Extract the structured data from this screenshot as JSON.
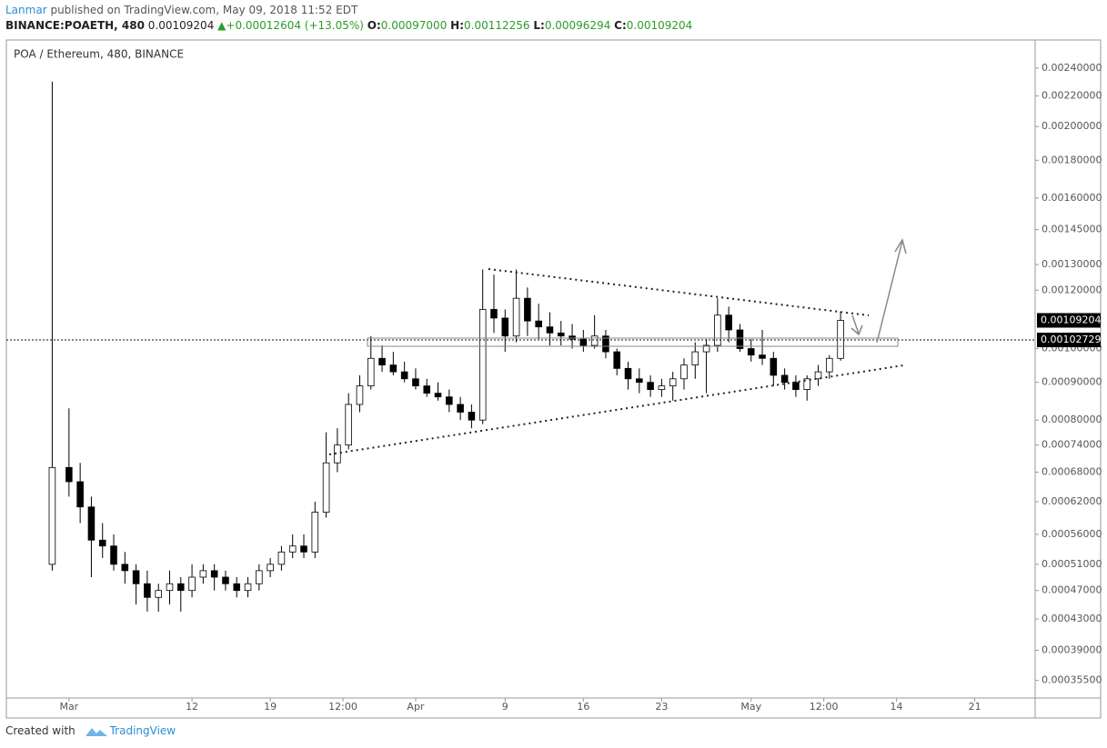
{
  "header": {
    "author": "Lanmar",
    "published": "published on TradingView.com, May 09, 2018 11:52 EDT",
    "symbol": "BINANCE:POAETH, 480",
    "price": "0.00109204",
    "change": "+0.00012604 (+13.05%)",
    "o_label": "O:",
    "o": "0.00097000",
    "h_label": "H:",
    "h": "0.00112256",
    "l_label": "L:",
    "l": "0.00096294",
    "c_label": "C:",
    "c": "0.00109204"
  },
  "footer": {
    "created": "Created with",
    "brand": "TradingView"
  },
  "chart_data": {
    "type": "candlestick",
    "title": "POA / Ethereum, 480, BINANCE",
    "log_scale": true,
    "up_color": "#ffffff",
    "down_color": "#000000",
    "outline_color": "#000000",
    "x": [
      -1.5,
      0,
      1,
      2,
      3,
      4,
      5,
      6,
      7,
      8,
      9,
      10,
      11,
      12,
      13,
      14,
      15,
      16,
      17,
      18,
      19,
      20,
      21,
      22,
      23,
      24,
      25,
      26,
      27,
      28,
      29,
      30,
      31,
      32,
      33,
      34,
      35,
      36,
      37,
      38,
      39,
      40,
      41,
      42,
      43,
      44,
      45,
      46,
      47,
      48,
      49,
      50,
      51,
      52,
      53,
      54,
      55,
      56,
      57,
      58,
      59,
      60,
      61,
      62,
      63,
      64,
      65,
      66,
      67,
      68,
      69
    ],
    "open": [
      0.00051,
      0.00069,
      0.00066,
      0.00061,
      0.00055,
      0.00054,
      0.00051,
      0.0005,
      0.00048,
      0.00046,
      0.00047,
      0.00048,
      0.00047,
      0.00049,
      0.0005,
      0.00049,
      0.00048,
      0.00047,
      0.00048,
      0.0005,
      0.00051,
      0.00053,
      0.00054,
      0.00053,
      0.0006,
      0.0007,
      0.00074,
      0.00084,
      0.00089,
      0.00097,
      0.00095,
      0.00093,
      0.00091,
      0.00089,
      0.00087,
      0.00086,
      0.00084,
      0.00082,
      0.0008,
      0.00113,
      0.0011,
      0.00104,
      0.00117,
      0.00109,
      0.00107,
      0.00105,
      0.00104,
      0.00103,
      0.00101,
      0.00104,
      0.00099,
      0.00094,
      0.00091,
      0.0009,
      0.00088,
      0.00089,
      0.00091,
      0.00095,
      0.00099,
      0.00101,
      0.00111,
      0.00106,
      0.001,
      0.00098,
      0.00097,
      0.00092,
      0.0009,
      0.00088,
      0.00091,
      0.00093,
      0.00097
    ],
    "high": [
      0.0023,
      0.00083,
      0.0007,
      0.00063,
      0.00058,
      0.00056,
      0.00053,
      0.00051,
      0.0005,
      0.00048,
      0.0005,
      0.00049,
      0.00051,
      0.00051,
      0.00051,
      0.0005,
      0.00049,
      0.00049,
      0.00051,
      0.00052,
      0.00054,
      0.00056,
      0.00056,
      0.00062,
      0.00077,
      0.00078,
      0.00087,
      0.00092,
      0.00104,
      0.00101,
      0.00099,
      0.00096,
      0.00094,
      0.00091,
      0.0009,
      0.00088,
      0.00086,
      0.00084,
      0.00128,
      0.00126,
      0.00113,
      0.00128,
      0.00121,
      0.00115,
      0.00112,
      0.00109,
      0.00108,
      0.00106,
      0.00111,
      0.00106,
      0.001,
      0.00096,
      0.00094,
      0.00092,
      0.00091,
      0.00093,
      0.00097,
      0.00102,
      0.00103,
      0.00117,
      0.00114,
      0.00108,
      0.00103,
      0.00106,
      0.00099,
      0.00094,
      0.00092,
      0.00092,
      0.00095,
      0.00098,
      0.00112256
    ],
    "low": [
      0.0005,
      0.00063,
      0.00058,
      0.00049,
      0.00052,
      0.0005,
      0.00048,
      0.00045,
      0.00044,
      0.00044,
      0.00045,
      0.00044,
      0.00046,
      0.00048,
      0.00047,
      0.00047,
      0.00046,
      0.00046,
      0.00047,
      0.00049,
      0.0005,
      0.00052,
      0.00052,
      0.00052,
      0.00059,
      0.00068,
      0.00073,
      0.00082,
      0.00088,
      0.00093,
      0.00092,
      0.0009,
      0.00088,
      0.00086,
      0.00085,
      0.00082,
      0.0008,
      0.00078,
      0.00079,
      0.00105,
      0.00099,
      0.00102,
      0.00104,
      0.00103,
      0.00101,
      0.00101,
      0.001,
      0.00099,
      0.001,
      0.00097,
      0.00092,
      0.00088,
      0.00087,
      0.00086,
      0.00086,
      0.00085,
      0.00088,
      0.00091,
      0.00087,
      0.00099,
      0.00102,
      0.00099,
      0.00096,
      0.00095,
      0.00089,
      0.00088,
      0.00086,
      0.00085,
      0.00089,
      0.00091,
      0.00096294
    ],
    "close": [
      0.00069,
      0.00066,
      0.00061,
      0.00055,
      0.00054,
      0.00051,
      0.0005,
      0.00048,
      0.00046,
      0.00047,
      0.00048,
      0.00047,
      0.00049,
      0.0005,
      0.00049,
      0.00048,
      0.00047,
      0.00048,
      0.0005,
      0.00051,
      0.00053,
      0.00054,
      0.00053,
      0.0006,
      0.0007,
      0.00074,
      0.00084,
      0.00089,
      0.00097,
      0.00095,
      0.00093,
      0.00091,
      0.00089,
      0.00087,
      0.00086,
      0.00084,
      0.00082,
      0.0008,
      0.00113,
      0.0011,
      0.00104,
      0.00117,
      0.00109,
      0.00107,
      0.00105,
      0.00104,
      0.00103,
      0.00101,
      0.00104,
      0.00099,
      0.00094,
      0.00091,
      0.0009,
      0.00088,
      0.00089,
      0.00091,
      0.00095,
      0.00099,
      0.00101,
      0.00111,
      0.00106,
      0.001,
      0.00098,
      0.00097,
      0.00092,
      0.0009,
      0.00088,
      0.00091,
      0.00093,
      0.00097,
      0.00109204
    ],
    "xlim": [
      -5.6,
      86.4
    ],
    "xticks": [
      {
        "value": 0,
        "label": "Mar"
      },
      {
        "value": 11,
        "label": "12"
      },
      {
        "value": 18,
        "label": "19"
      },
      {
        "value": 24.5,
        "label": "12:00"
      },
      {
        "value": 31,
        "label": "Apr"
      },
      {
        "value": 39,
        "label": "9"
      },
      {
        "value": 46,
        "label": "16"
      },
      {
        "value": 53,
        "label": "23"
      },
      {
        "value": 61,
        "label": "May"
      },
      {
        "value": 67.5,
        "label": "12:00"
      },
      {
        "value": 74,
        "label": "14"
      },
      {
        "value": 81,
        "label": "21"
      }
    ],
    "ylim": [
      0.000336,
      0.00262
    ],
    "yticks": [
      {
        "value": 0.0024,
        "label": "0.00240000"
      },
      {
        "value": 0.0022,
        "label": "0.00220000"
      },
      {
        "value": 0.002,
        "label": "0.00200000"
      },
      {
        "value": 0.0018,
        "label": "0.00180000"
      },
      {
        "value": 0.0016,
        "label": "0.00160000"
      },
      {
        "value": 0.00145,
        "label": "0.00145000"
      },
      {
        "value": 0.0013,
        "label": "0.00130000"
      },
      {
        "value": 0.0012,
        "label": "0.00120000"
      },
      {
        "value": 0.001,
        "label": "0.00100000"
      },
      {
        "value": 0.0009,
        "label": "0.00090000"
      },
      {
        "value": 0.0008,
        "label": "0.00080000"
      },
      {
        "value": 0.00074,
        "label": "0.00074000"
      },
      {
        "value": 0.00068,
        "label": "0.00068000"
      },
      {
        "value": 0.00062,
        "label": "0.00062000"
      },
      {
        "value": 0.00056,
        "label": "0.00056000"
      },
      {
        "value": 0.00051,
        "label": "0.00051000"
      },
      {
        "value": 0.00047,
        "label": "0.00047000"
      },
      {
        "value": 0.00043,
        "label": "0.00043000"
      },
      {
        "value": 0.00039,
        "label": "0.00039000"
      },
      {
        "value": 0.000355,
        "label": "0.00035500"
      }
    ],
    "price_lines": [
      {
        "value": 0.00109204,
        "label": "0.00109204",
        "dotted": false
      },
      {
        "value": 0.00102729,
        "label": "0.00102729",
        "dotted": true
      }
    ]
  }
}
